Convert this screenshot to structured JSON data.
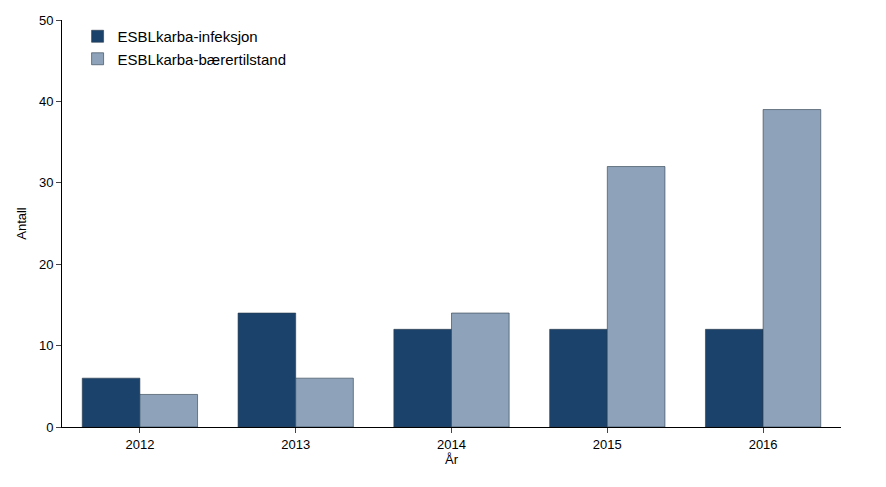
{
  "chart_data": {
    "type": "bar",
    "x_label": "År",
    "y_label": "Antall",
    "categories": [
      "2012",
      "2013",
      "2014",
      "2015",
      "2016"
    ],
    "series": [
      {
        "name": "ESBLkarba-infeksjon",
        "color": "#1b426b",
        "values": [
          6,
          14,
          12,
          12,
          12
        ]
      },
      {
        "name": "ESBLkarba-bærertilstand",
        "color": "#8ea3b9",
        "values": [
          4,
          6,
          14,
          32,
          39
        ]
      }
    ],
    "ylim": [
      0,
      50
    ],
    "yticks": [
      0,
      10,
      20,
      30,
      40,
      50
    ],
    "grid": false,
    "legend": "top-left"
  }
}
